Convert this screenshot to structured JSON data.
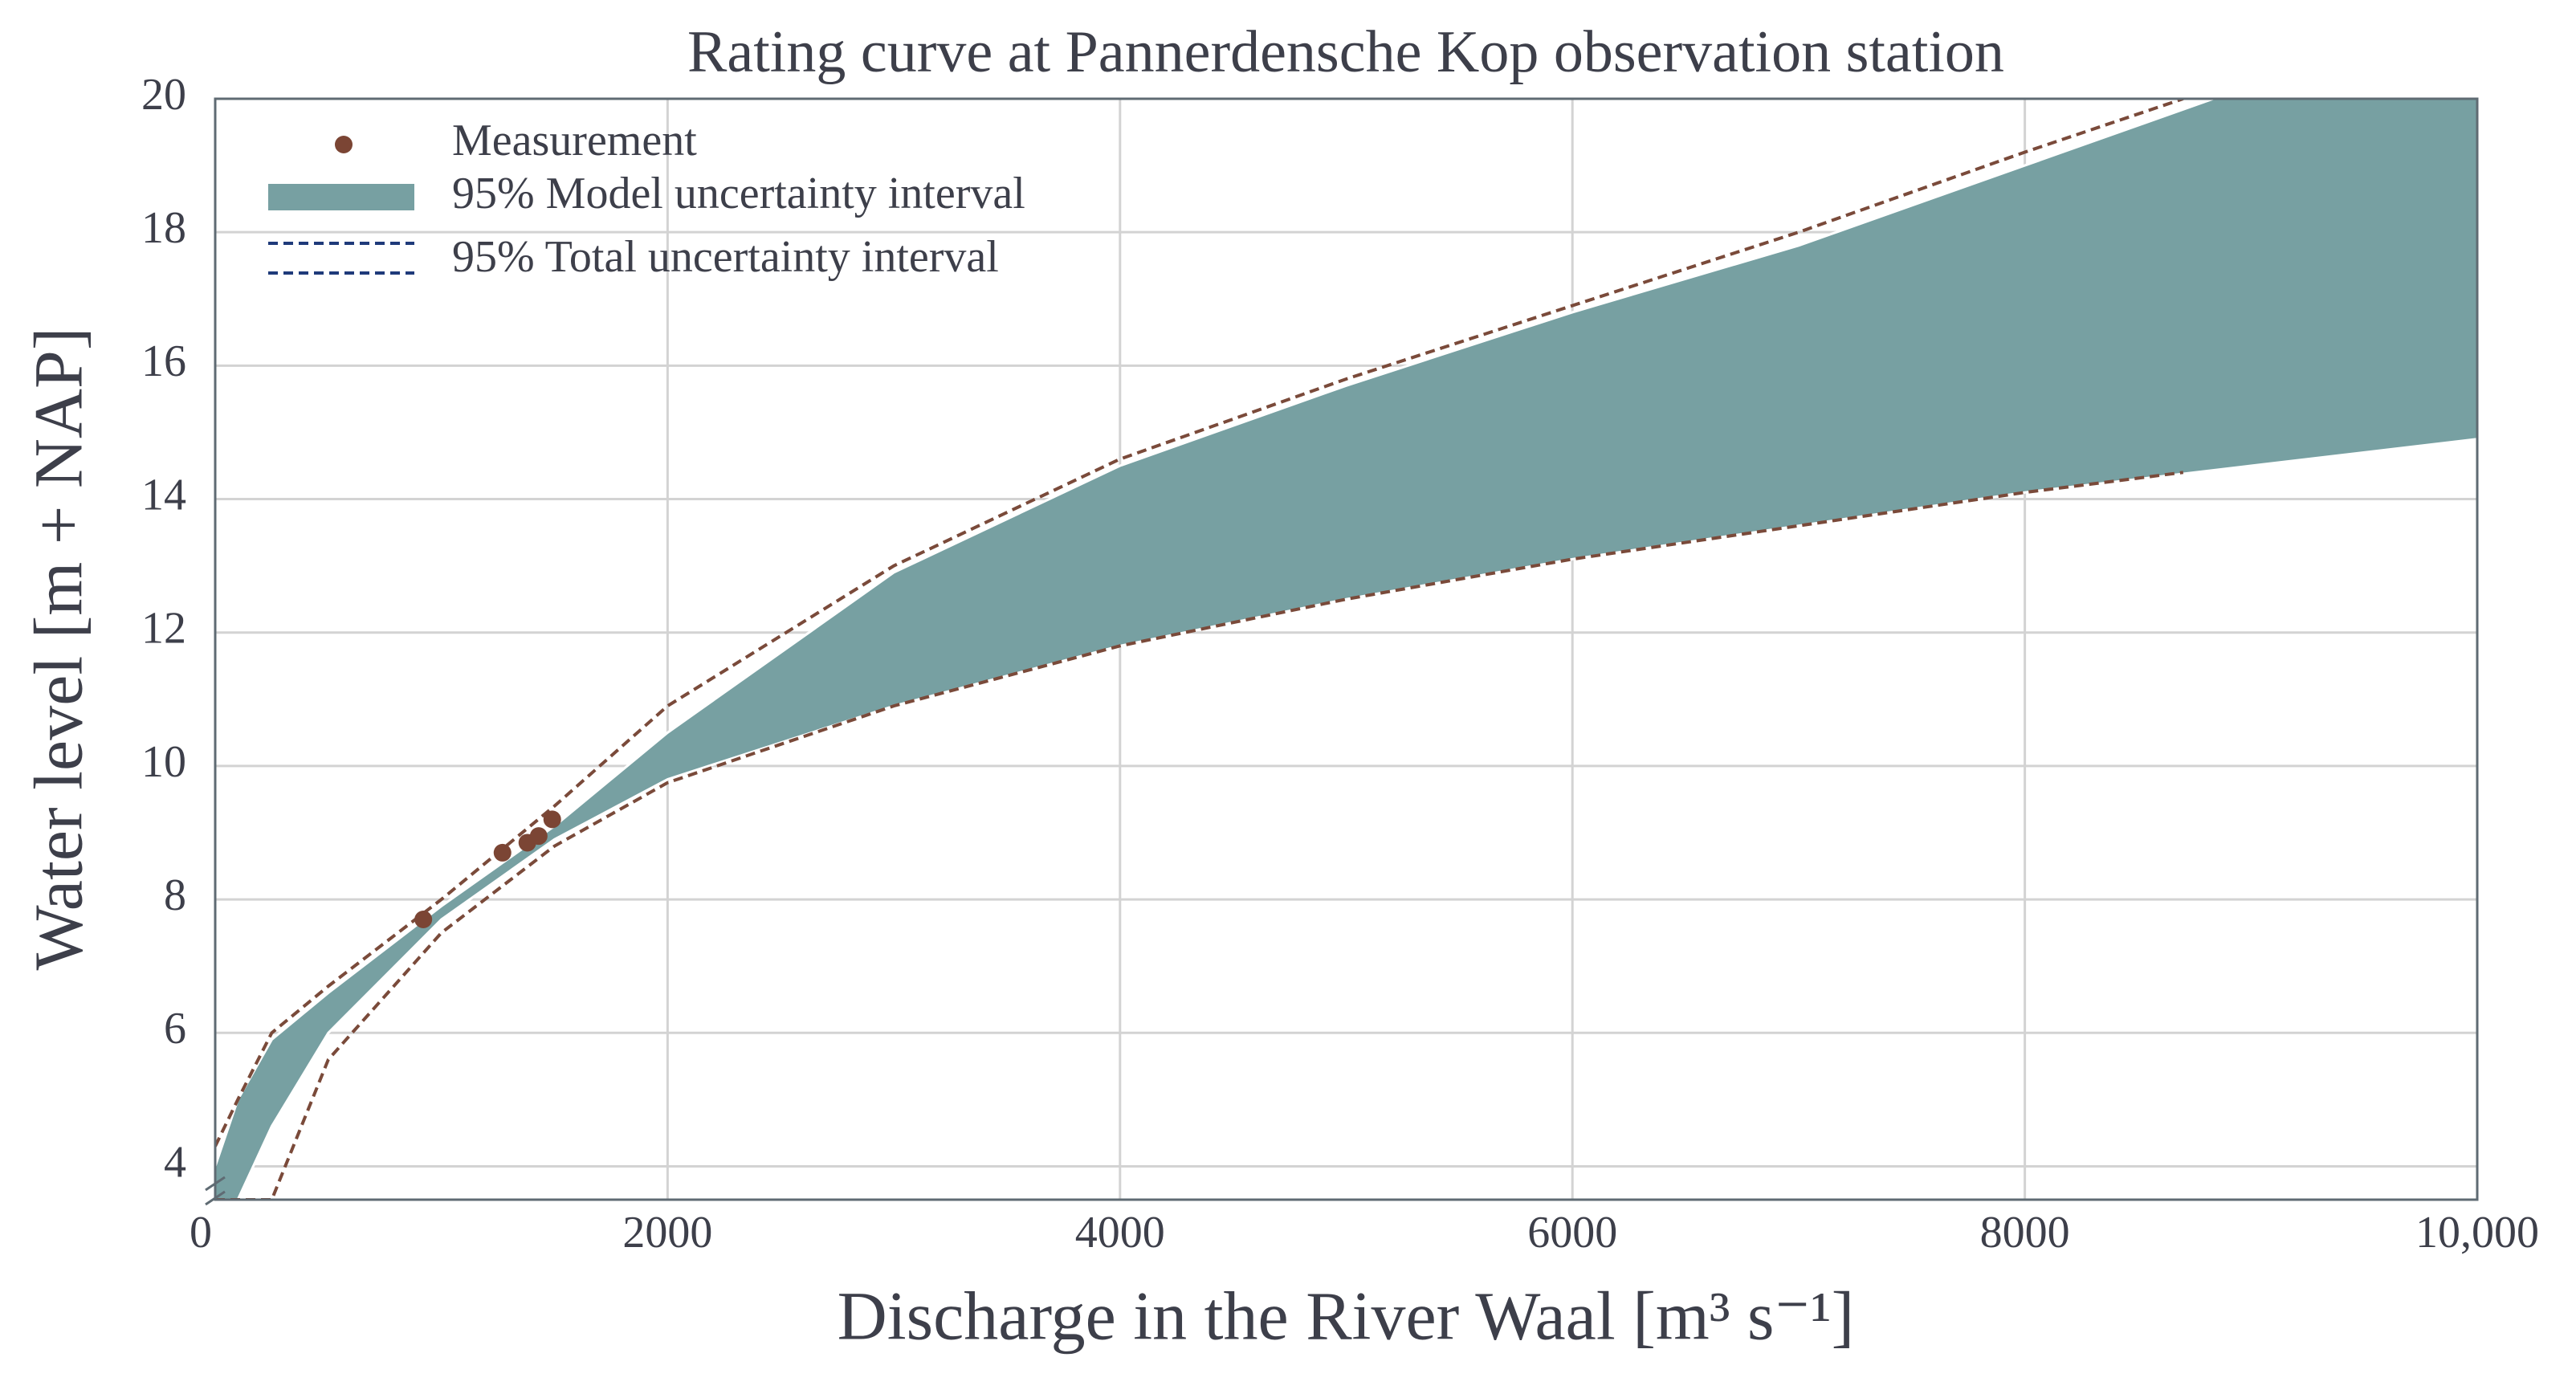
{
  "chart_data": {
    "type": "rating-curve",
    "title": "Rating curve at Pannerdensche Kop observation station",
    "x_label": "Discharge in the River Waal [m³ s⁻¹]",
    "y_label": "Water level [m + NAP]",
    "xlim": [
      0,
      10000
    ],
    "xticks": [
      0,
      2000,
      4000,
      6000,
      8000,
      {
        "value": 10000,
        "label": "10,000"
      }
    ],
    "ylim": [
      3.5,
      20
    ],
    "yticks": [
      4,
      6,
      8,
      10,
      12,
      14,
      16,
      18,
      20
    ],
    "grid": true,
    "legend": "upper left",
    "measurements": {
      "name": "Measurement",
      "color": "#7b4534",
      "x": [
        920,
        1270,
        1380,
        1430,
        1490
      ],
      "values": [
        7.7,
        8.7,
        8.85,
        8.95,
        9.2
      ]
    },
    "model_interval": {
      "name": "95% Model uncertainty interval",
      "color": "#77a0a2",
      "x": [
        0,
        100,
        250,
        500,
        1000,
        1500,
        2000,
        3000,
        4000,
        5000,
        6000,
        7000,
        8000,
        9000,
        10000
      ],
      "lower": [
        3.5,
        3.5,
        4.6,
        6.0,
        7.7,
        8.9,
        9.8,
        10.9,
        11.8,
        12.5,
        13.1,
        13.6,
        14.1,
        14.5,
        14.9
      ],
      "upper": [
        4.0,
        5.0,
        5.9,
        6.6,
        7.9,
        9.1,
        10.5,
        12.9,
        14.5,
        15.7,
        16.8,
        17.8,
        19.0,
        20.2,
        21.0
      ]
    },
    "total_interval": {
      "name": "95% Total uncertainty interval",
      "color": "#7a4a3a",
      "legend_color": "#1f3a7a",
      "x": [
        0,
        100,
        250,
        500,
        1000,
        1500,
        2000,
        3000,
        4000,
        5000,
        6000,
        7000,
        8000,
        8700
      ],
      "lower": [
        3.5,
        3.5,
        3.5,
        5.6,
        7.5,
        8.8,
        9.75,
        10.9,
        11.8,
        12.5,
        13.1,
        13.6,
        14.1,
        14.4
      ],
      "upper": [
        4.3,
        5.0,
        6.0,
        6.7,
        8.0,
        9.4,
        10.9,
        13.0,
        14.6,
        15.8,
        16.9,
        18.0,
        19.2,
        20.0
      ]
    }
  }
}
